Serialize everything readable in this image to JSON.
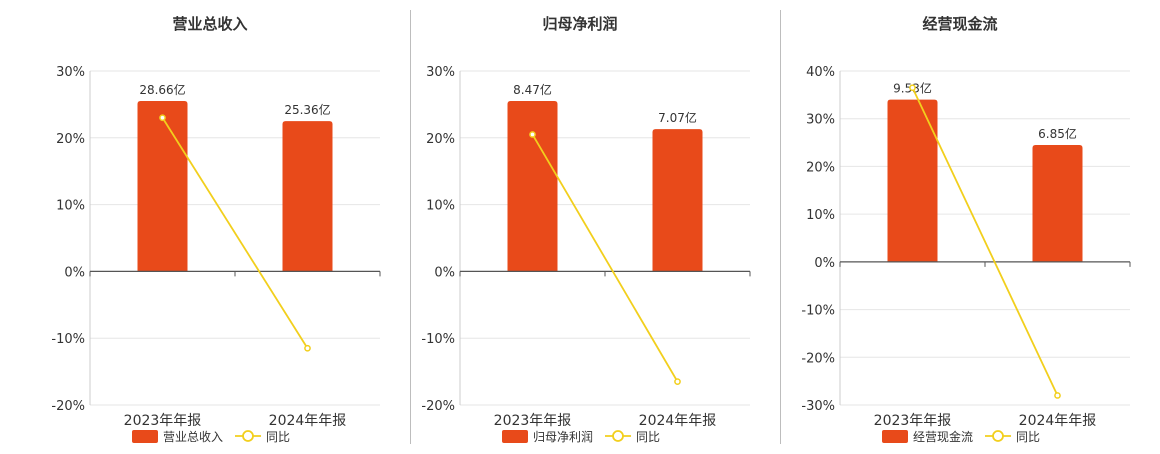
{
  "chart_data": [
    {
      "type": "bar",
      "title": "营业总收入",
      "categories": [
        "2023年年报",
        "2024年年报"
      ],
      "series": [
        {
          "name": "营业总收入",
          "kind": "bar",
          "values": [
            25.5,
            22.5
          ],
          "labels": [
            "28.66亿",
            "25.36亿"
          ]
        },
        {
          "name": "同比",
          "kind": "line",
          "values": [
            23.0,
            -11.5
          ]
        }
      ],
      "ylim": [
        -20,
        30
      ],
      "yticks": [
        30,
        20,
        10,
        0,
        -10,
        -20
      ],
      "ytick_labels": [
        "30%",
        "20%",
        "10%",
        "0%",
        "-10%",
        "-20%"
      ],
      "grid": true,
      "legend": "bottom"
    },
    {
      "type": "bar",
      "title": "归母净利润",
      "categories": [
        "2023年年报",
        "2024年年报"
      ],
      "series": [
        {
          "name": "归母净利润",
          "kind": "bar",
          "values": [
            25.5,
            21.3
          ],
          "labels": [
            "8.47亿",
            "7.07亿"
          ]
        },
        {
          "name": "同比",
          "kind": "line",
          "values": [
            20.5,
            -16.5
          ]
        }
      ],
      "ylim": [
        -20,
        30
      ],
      "yticks": [
        30,
        20,
        10,
        0,
        -10,
        -20
      ],
      "ytick_labels": [
        "30%",
        "20%",
        "10%",
        "0%",
        "-10%",
        "-20%"
      ],
      "grid": true,
      "legend": "bottom"
    },
    {
      "type": "bar",
      "title": "经营现金流",
      "categories": [
        "2023年年报",
        "2024年年报"
      ],
      "series": [
        {
          "name": "经营现金流",
          "kind": "bar",
          "values": [
            34.0,
            24.5
          ],
          "labels": [
            "9.53亿",
            "6.85亿"
          ]
        },
        {
          "name": "同比",
          "kind": "line",
          "values": [
            36.5,
            -28.0
          ]
        }
      ],
      "ylim": [
        -30,
        40
      ],
      "yticks": [
        40,
        30,
        20,
        10,
        0,
        -10,
        -20,
        -30
      ],
      "ytick_labels": [
        "40%",
        "30%",
        "20%",
        "10%",
        "0%",
        "-10%",
        "-20%",
        "-30%"
      ],
      "grid": true,
      "legend": "bottom"
    }
  ],
  "colors": {
    "bar": "#e84a1a",
    "line": "#f2cf1d",
    "grid": "#e6e6e6",
    "axis": "#555555",
    "text": "#333333"
  }
}
